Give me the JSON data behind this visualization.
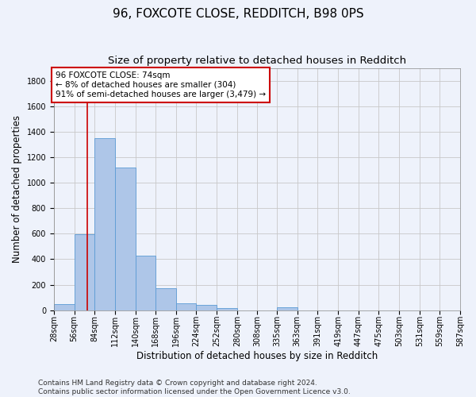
{
  "title_line1": "96, FOXCOTE CLOSE, REDDITCH, B98 0PS",
  "title_line2": "Size of property relative to detached houses in Redditch",
  "xlabel": "Distribution of detached houses by size in Redditch",
  "ylabel": "Number of detached properties",
  "bar_values": [
    50,
    595,
    1350,
    1120,
    425,
    170,
    55,
    40,
    15,
    0,
    0,
    20,
    0,
    0,
    0,
    0,
    0,
    0,
    0,
    0
  ],
  "bin_edges": [
    28,
    56,
    84,
    112,
    140,
    168,
    196,
    224,
    252,
    280,
    308,
    335,
    363,
    391,
    419,
    447,
    475,
    503,
    531,
    559,
    587
  ],
  "bin_labels": [
    "28sqm",
    "56sqm",
    "84sqm",
    "112sqm",
    "140sqm",
    "168sqm",
    "196sqm",
    "224sqm",
    "252sqm",
    "280sqm",
    "308sqm",
    "335sqm",
    "363sqm",
    "391sqm",
    "419sqm",
    "447sqm",
    "475sqm",
    "503sqm",
    "531sqm",
    "559sqm",
    "587sqm"
  ],
  "bar_color": "#aec6e8",
  "bar_edge_color": "#5b9bd5",
  "background_color": "#eef2fb",
  "grid_color": "#c8c8c8",
  "property_value": 74,
  "vline_color": "#cc0000",
  "annotation_text": "96 FOXCOTE CLOSE: 74sqm\n← 8% of detached houses are smaller (304)\n91% of semi-detached houses are larger (3,479) →",
  "annotation_box_color": "#ffffff",
  "annotation_box_edge_color": "#cc0000",
  "ylim": [
    0,
    1900
  ],
  "yticks": [
    0,
    200,
    400,
    600,
    800,
    1000,
    1200,
    1400,
    1600,
    1800
  ],
  "footnote": "Contains HM Land Registry data © Crown copyright and database right 2024.\nContains public sector information licensed under the Open Government Licence v3.0.",
  "title_fontsize": 11,
  "subtitle_fontsize": 9.5,
  "axis_label_fontsize": 8.5,
  "tick_fontsize": 7,
  "annotation_fontsize": 7.5,
  "footnote_fontsize": 6.5
}
